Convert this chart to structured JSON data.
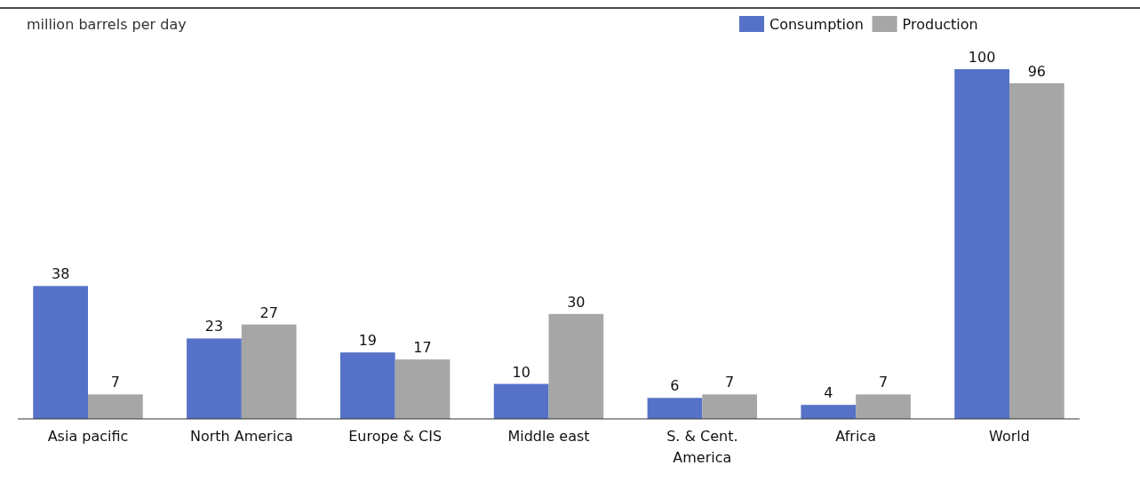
{
  "chart_data": {
    "type": "bar",
    "ylabel": "million barrels per day",
    "categories": [
      "Asia pacific",
      "North America",
      "Europe & CIS",
      "Middle east",
      "S. & Cent. America",
      "Africa",
      "World"
    ],
    "series": [
      {
        "name": "Consumption",
        "color": "#5572c8",
        "values": [
          38,
          23,
          19,
          10,
          6,
          4,
          100
        ]
      },
      {
        "name": "Production",
        "color": "#a6a6a6",
        "values": [
          7,
          27,
          17,
          30,
          7,
          7,
          96
        ]
      }
    ],
    "data_labels": true,
    "legend": "top right"
  }
}
